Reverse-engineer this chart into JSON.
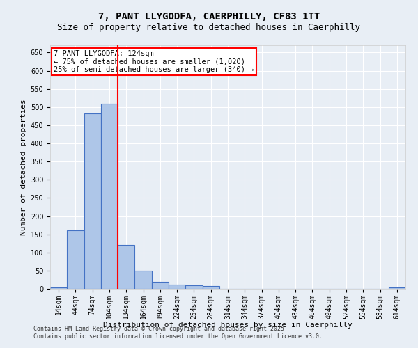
{
  "title": "7, PANT LLYGODFA, CAERPHILLY, CF83 1TT",
  "subtitle": "Size of property relative to detached houses in Caerphilly",
  "xlabel": "Distribution of detached houses by size in Caerphilly",
  "ylabel": "Number of detached properties",
  "categories": [
    "14sqm",
    "44sqm",
    "74sqm",
    "104sqm",
    "134sqm",
    "164sqm",
    "194sqm",
    "224sqm",
    "254sqm",
    "284sqm",
    "314sqm",
    "344sqm",
    "374sqm",
    "404sqm",
    "434sqm",
    "464sqm",
    "494sqm",
    "524sqm",
    "554sqm",
    "584sqm",
    "614sqm"
  ],
  "values": [
    4,
    160,
    483,
    510,
    120,
    50,
    20,
    12,
    10,
    8,
    0,
    0,
    0,
    0,
    0,
    0,
    0,
    0,
    0,
    0,
    3
  ],
  "bar_color": "#aec6e8",
  "bar_edge_color": "#4472c4",
  "vline_color": "red",
  "annotation_text": "7 PANT LLYGODFA: 124sqm\n← 75% of detached houses are smaller (1,020)\n25% of semi-detached houses are larger (340) →",
  "annotation_box_color": "white",
  "annotation_box_edge_color": "red",
  "ylim": [
    0,
    670
  ],
  "yticks": [
    0,
    50,
    100,
    150,
    200,
    250,
    300,
    350,
    400,
    450,
    500,
    550,
    600,
    650
  ],
  "footer": "Contains HM Land Registry data © Crown copyright and database right 2025.\nContains public sector information licensed under the Open Government Licence v3.0.",
  "bg_color": "#e8eef5",
  "title_fontsize": 10,
  "subtitle_fontsize": 9,
  "tick_fontsize": 7,
  "label_fontsize": 8,
  "footer_fontsize": 6
}
